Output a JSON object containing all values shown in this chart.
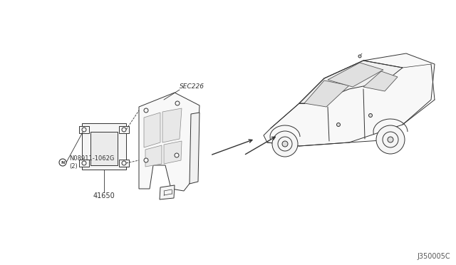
{
  "bg_color": "#ffffff",
  "line_color": "#333333",
  "text_color": "#333333",
  "diagram_code": "J350005C",
  "sec_label": "SEC226",
  "part_label_1": "N08911-1062G\n(2)",
  "part_label_2": "41650",
  "lw": 0.7
}
